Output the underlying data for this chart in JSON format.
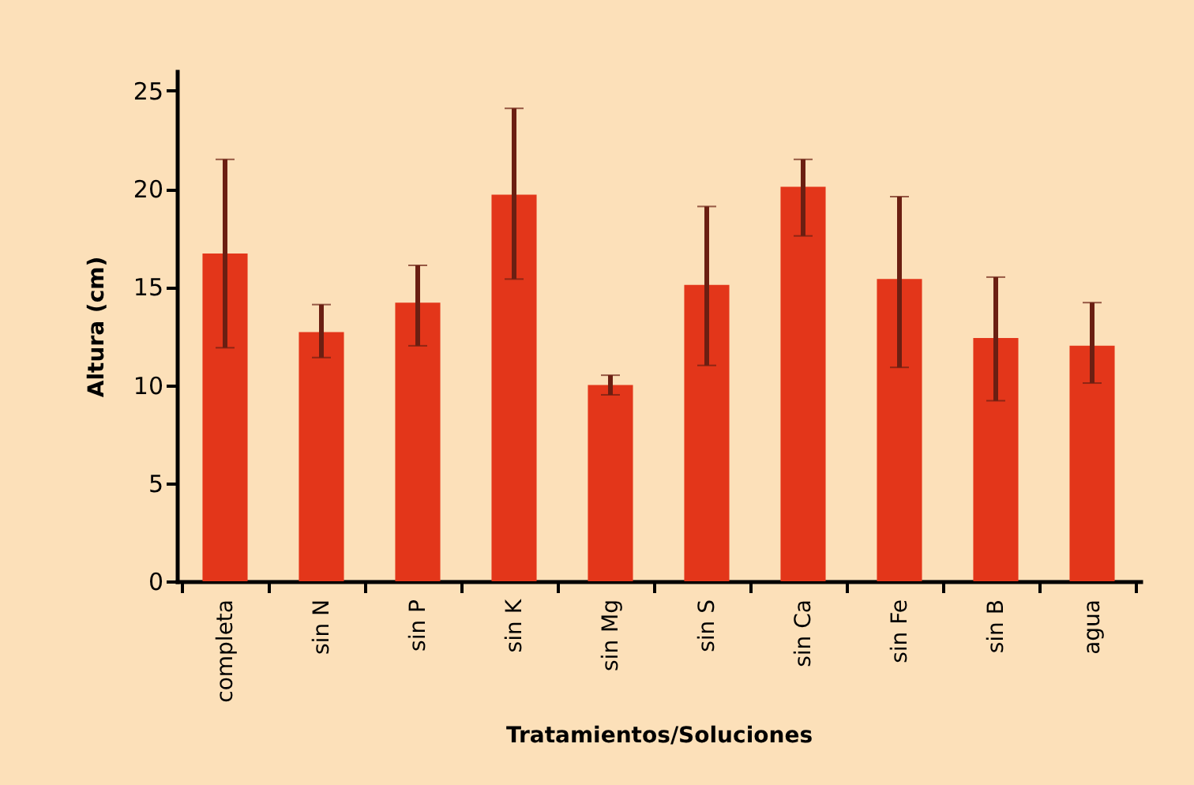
{
  "chart_data": {
    "type": "bar",
    "xlabel": "Tratamientos/Soluciones",
    "ylabel": "Altura (cm)",
    "categories": [
      "completa",
      "sin N",
      "sin P",
      "sin K",
      "sin Mg",
      "sin S",
      "sin Ca",
      "sin Fe",
      "sin B",
      "agua"
    ],
    "values": [
      16.7,
      12.7,
      14.2,
      19.7,
      10.0,
      15.1,
      20.1,
      15.4,
      12.4,
      12.0
    ],
    "errors": [
      [
        11.9,
        21.5
      ],
      [
        11.4,
        14.1
      ],
      [
        12.0,
        16.1
      ],
      [
        15.4,
        24.1
      ],
      [
        9.5,
        10.5
      ],
      [
        11.0,
        19.1
      ],
      [
        17.6,
        21.5
      ],
      [
        10.9,
        19.6
      ],
      [
        9.2,
        15.5
      ],
      [
        10.1,
        14.2
      ]
    ],
    "color": "#e3361a",
    "ylim": [
      0,
      26
    ],
    "yticks": [
      0,
      5,
      10,
      15,
      20,
      25
    ],
    "grid": false
  }
}
